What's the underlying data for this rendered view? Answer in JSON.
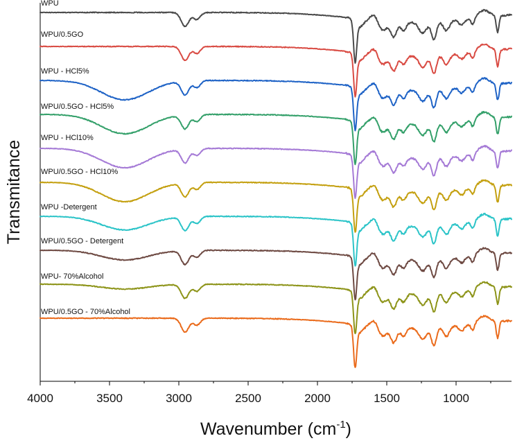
{
  "chart_data": {
    "type": "line",
    "xlabel": "Wavenumber (cm",
    "xlabel_superscript": "-1",
    "xlabel_suffix": ")",
    "ylabel": "Transmitance",
    "xlim": [
      4000,
      600
    ],
    "x_reversed": true,
    "xticks": [
      4000,
      3500,
      3000,
      2500,
      2000,
      1500,
      1000
    ],
    "y_tick_labels": false,
    "legend": "inline-labels",
    "series": [
      {
        "name": "WPU",
        "color": "#4a4a4a",
        "offset": 0,
        "broadOH": 0.0
      },
      {
        "name": "WPU/0.5GO",
        "color": "#d94b43",
        "offset": 1,
        "broadOH": 0.0
      },
      {
        "name": "WPU - HCl5%",
        "color": "#1f63c6",
        "offset": 2,
        "broadOH": 1.0
      },
      {
        "name": "WPU/0.5GO - HCl5%",
        "color": "#34a06a",
        "offset": 3,
        "broadOH": 1.0
      },
      {
        "name": "WPU - HCl10%",
        "color": "#a57ad6",
        "offset": 4,
        "broadOH": 1.0
      },
      {
        "name": "WPU/0.5GO - HCl10%",
        "color": "#c4a010",
        "offset": 5,
        "broadOH": 1.0
      },
      {
        "name": "WPU -Detergent",
        "color": "#2cc4c8",
        "offset": 6,
        "broadOH": 0.7
      },
      {
        "name": "WPU/0.5GO - Detergent",
        "color": "#6e4a43",
        "offset": 7,
        "broadOH": 0.5
      },
      {
        "name": "WPU- 70%Alcohol",
        "color": "#8d9419",
        "offset": 8,
        "broadOH": 0.25
      },
      {
        "name": "WPU/0.5GO - 70%Alcohol",
        "color": "#ea6b1c",
        "offset": 9,
        "broadOH": 0.0
      }
    ]
  }
}
